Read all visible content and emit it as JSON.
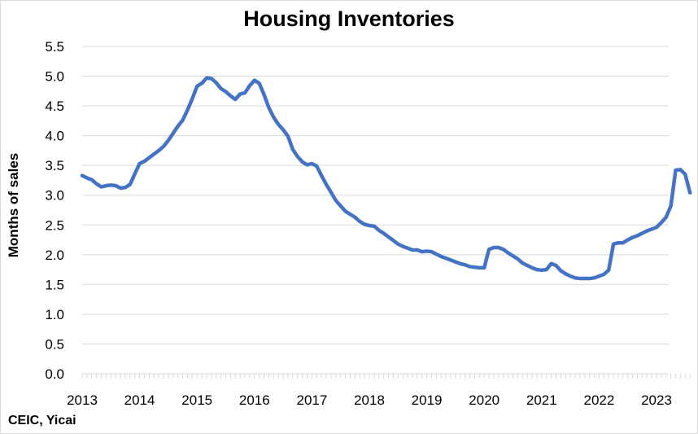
{
  "chart_data": {
    "type": "line",
    "title": "Housing Inventories",
    "ylabel": "Months of sales",
    "xlabel": "",
    "source": "CEIC, Yicai",
    "ylim": [
      0,
      5.5
    ],
    "yticks": [
      "0.0",
      "0.5",
      "1.0",
      "1.5",
      "2.0",
      "2.5",
      "3.0",
      "3.5",
      "4.0",
      "4.5",
      "5.0",
      "5.5"
    ],
    "xticks": [
      "2013",
      "2014",
      "2015",
      "2016",
      "2017",
      "2018",
      "2019",
      "2020",
      "2021",
      "2022",
      "2023"
    ],
    "grid": true,
    "color": "#4472C4",
    "x_start": 2013,
    "x_step_months": 1,
    "values": [
      3.33,
      3.29,
      3.26,
      3.19,
      3.14,
      3.16,
      3.17,
      3.16,
      3.12,
      3.13,
      3.18,
      3.36,
      3.53,
      3.57,
      3.63,
      3.69,
      3.75,
      3.82,
      3.92,
      4.04,
      4.16,
      4.26,
      4.43,
      4.62,
      4.83,
      4.88,
      4.97,
      4.96,
      4.89,
      4.79,
      4.74,
      4.67,
      4.61,
      4.7,
      4.72,
      4.84,
      4.93,
      4.88,
      4.69,
      4.47,
      4.31,
      4.19,
      4.1,
      3.99,
      3.77,
      3.65,
      3.56,
      3.51,
      3.53,
      3.49,
      3.33,
      3.18,
      3.05,
      2.91,
      2.82,
      2.73,
      2.68,
      2.63,
      2.56,
      2.51,
      2.49,
      2.48,
      2.41,
      2.36,
      2.3,
      2.24,
      2.18,
      2.14,
      2.11,
      2.08,
      2.08,
      2.05,
      2.06,
      2.05,
      2.01,
      1.97,
      1.94,
      1.91,
      1.88,
      1.85,
      1.83,
      1.8,
      1.79,
      1.78,
      1.78,
      2.09,
      2.12,
      2.12,
      2.09,
      2.03,
      1.98,
      1.93,
      1.86,
      1.82,
      1.78,
      1.75,
      1.74,
      1.75,
      1.85,
      1.82,
      1.73,
      1.68,
      1.64,
      1.61,
      1.6,
      1.6,
      1.6,
      1.61,
      1.64,
      1.67,
      1.74,
      2.18,
      2.2,
      2.2,
      2.25,
      2.29,
      2.32,
      2.36,
      2.4,
      2.43,
      2.46,
      2.54,
      2.63,
      2.82,
      3.42,
      3.43,
      3.35,
      3.04
    ]
  }
}
